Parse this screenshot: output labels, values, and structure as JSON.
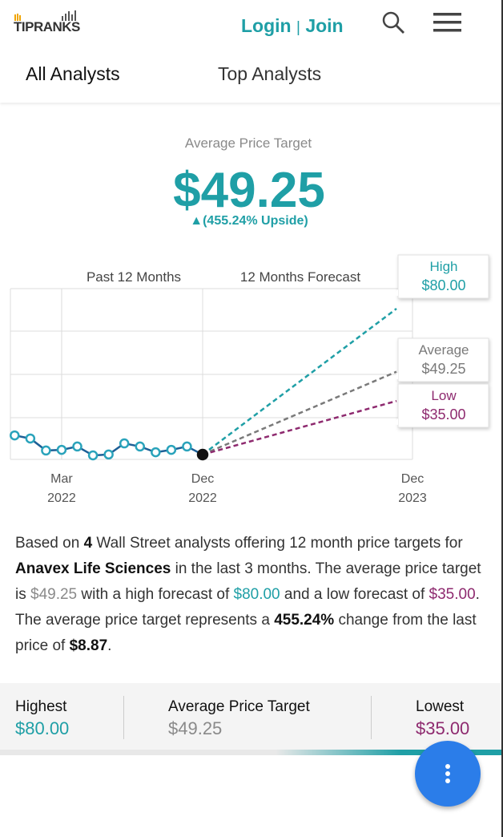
{
  "header": {
    "logo": "TIPRANKS",
    "login": "Login",
    "separator": "|",
    "join": "Join"
  },
  "tabs": [
    "All Analysts",
    "Top Analysts"
  ],
  "summary": {
    "label": "Average Price Target",
    "value": "$49.25",
    "upside": "▲(455.24% Upside)"
  },
  "chart_data": {
    "type": "line",
    "period_labels": [
      "Past 12 Months",
      "12 Months Forecast"
    ],
    "xlim": [
      -0.27,
      24
    ],
    "ylim": [
      6.7,
      83.6
    ],
    "xticks": [
      {
        "value": 3,
        "label": "Mar 2022"
      },
      {
        "value": 12,
        "label": "Dec 2022"
      },
      {
        "value": 24,
        "label": "Dec 2023"
      }
    ],
    "series": [
      {
        "color": "#1d5f96",
        "marker_color": "#2aa3bb",
        "x": [
          0,
          1,
          2,
          3,
          4,
          5,
          6,
          7,
          8,
          9,
          10,
          11,
          12
        ],
        "values": [
          17.5,
          16.1,
          10.7,
          11.0,
          12.5,
          8.5,
          8.9,
          13.9,
          12.5,
          9.9,
          11.0,
          12.5,
          8.87
        ]
      }
    ],
    "forecast": {
      "x": 24,
      "targets": [
        {
          "name": "High",
          "value": 80,
          "value_label": "$80.00",
          "color": "#1f9fa6"
        },
        {
          "name": "Average",
          "value": 49.25,
          "value_label": "$49.25",
          "color": "#7a7a7a"
        },
        {
          "name": "Low",
          "value": 35,
          "value_label": "$35.00",
          "color": "#8e2a6f"
        }
      ]
    }
  },
  "description": [
    "Based on ",
    "4",
    " Wall Street analysts offering 12 month price targets for ",
    "Anavex Life Sciences",
    " in the last 3 months. The average price target is ",
    "$49.25",
    " with a high forecast of ",
    "$80.00",
    " and a low forecast of ",
    "$35.00",
    ". The average price target represents a ",
    "455.24%",
    " change from the last price of ",
    "$8.87",
    "."
  ],
  "footer": {
    "highest": {
      "label": "Highest",
      "value": "$80.00"
    },
    "average": {
      "label": "Average Price Target",
      "value": "$49.25"
    },
    "lowest": {
      "label": "Lowest",
      "value": "$35.00"
    }
  }
}
